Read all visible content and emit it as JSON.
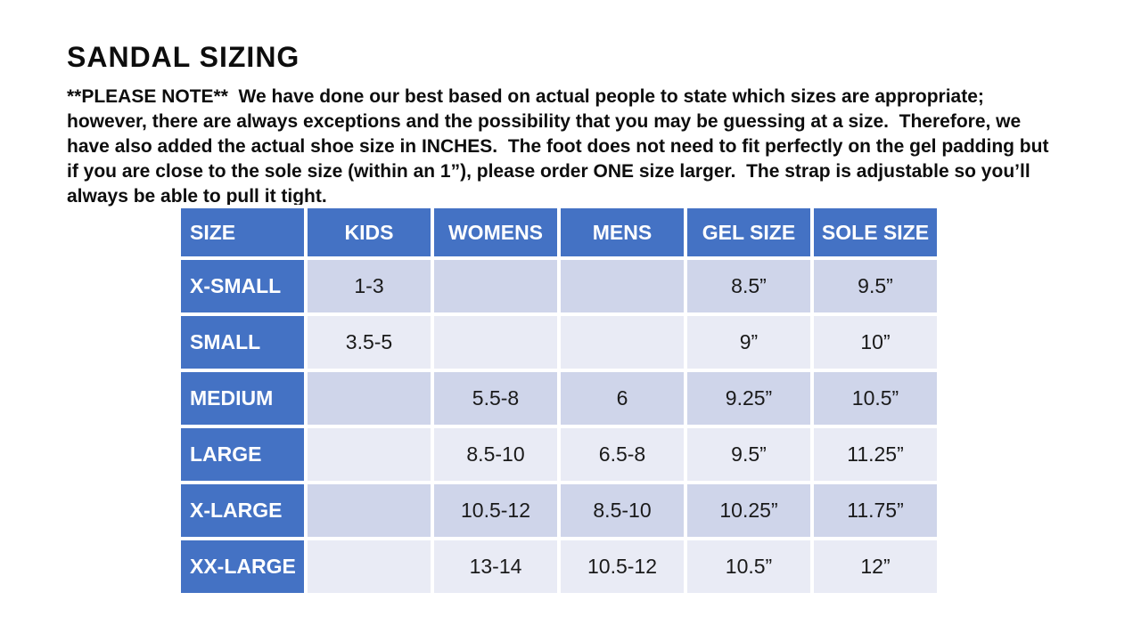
{
  "page": {
    "background": "#FFFFFF"
  },
  "header": {
    "title": "SANDAL SIZING",
    "note": "**PLEASE NOTE**  We have done our best based on actual people to state which sizes are appropriate; however, there are always exceptions and the possibility that you may be guessing at a size.  Therefore, we have also added the actual shoe size in INCHES.  The foot does not need to fit perfectly on the gel padding but if you are close to the sole size (within an 1”), please order ONE size larger.  The strap is adjustable so you’ll always be able to pull it tight."
  },
  "table": {
    "columns": [
      "SIZE",
      "KIDS",
      "WOMENS",
      "MENS",
      "GEL SIZE",
      "SOLE SIZE"
    ],
    "rows": [
      [
        "X-SMALL",
        "1-3",
        "",
        "",
        "8.5”",
        "9.5”"
      ],
      [
        "SMALL",
        "3.5-5",
        "",
        "",
        "9”",
        "10”"
      ],
      [
        "MEDIUM",
        "",
        "5.5-8",
        "6",
        "9.25”",
        "10.5”"
      ],
      [
        "LARGE",
        "",
        "8.5-10",
        "6.5-8",
        "9.5”",
        "11.25”"
      ],
      [
        "X-LARGE",
        "",
        "10.5-12",
        "8.5-10",
        "10.25”",
        "11.75”"
      ],
      [
        "XX-LARGE",
        "",
        "13-14",
        "10.5-12",
        "10.5”",
        "12”"
      ]
    ],
    "colors": {
      "accent": "#4472C4",
      "band_dark": "#CFD5EA",
      "band_light": "#E9EBF5",
      "header_text": "#FFFFFF",
      "body_text": "#1A1A1A",
      "grid": "#FFFFFF"
    }
  }
}
